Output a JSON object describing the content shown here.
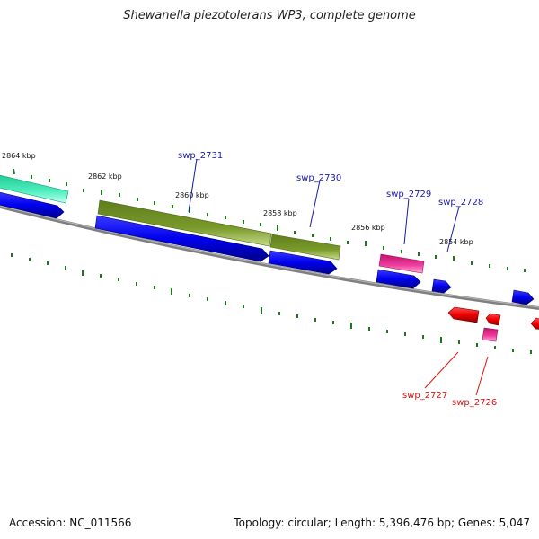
{
  "title": "Shewanella piezotolerans WP3, complete genome",
  "footer": {
    "accession": "Accession: NC_011566",
    "summary": "Topology: circular; Length: 5,396,476 bp; Genes: 5,047"
  },
  "kbp_labels": [
    "2864 kbp",
    "2862 kbp",
    "2860 kbp",
    "2858 kbp",
    "2856 kbp",
    "2854 kbp"
  ],
  "gene_labels": {
    "swp_2731": "swp_2731",
    "swp_2730": "swp_2730",
    "swp_2729": "swp_2729",
    "swp_2728": "swp_2728",
    "swp_2727": "swp_2727",
    "swp_2726": "swp_2726"
  },
  "colors": {
    "backbone": "#808080",
    "forward_cds": "#0000ee",
    "green_gene": "#6b8e23",
    "teal_gene": "#40e0b0",
    "pink_gene": "#e0308a",
    "reverse_cds": "#ee0000",
    "tick": "#1a7a1a",
    "label_forward": "#1a1aa8",
    "label_reverse": "#dd1111"
  }
}
